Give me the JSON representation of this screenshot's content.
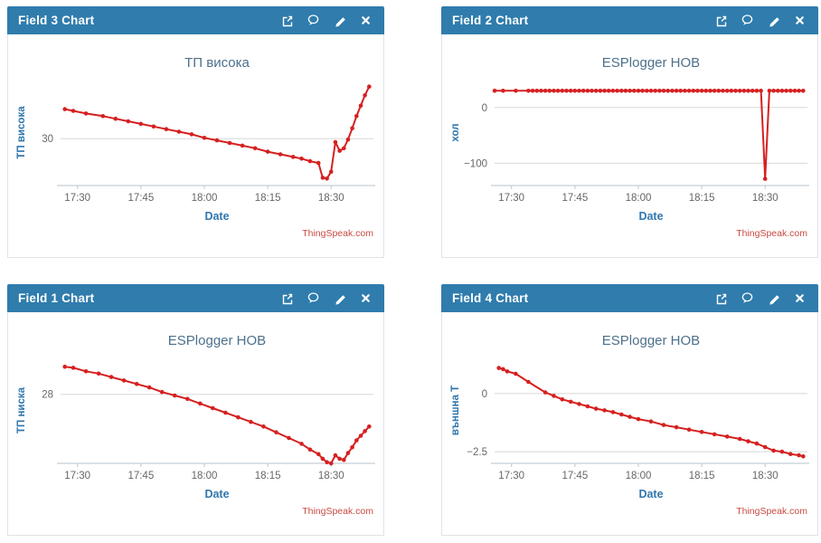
{
  "colors": {
    "page_bg": "#ffffff",
    "header_bg": "#2f7cad",
    "header_text": "#ffffff",
    "panel_border": "#dfe4e8",
    "title_text": "#4d708b",
    "axis_label": "#3077ad",
    "tick_text": "#666666",
    "grid_line": "#d8d8d8",
    "axis_line": "#c3cfd8",
    "series_red": "#d62020",
    "watermark": "#ca4a42"
  },
  "icons": [
    {
      "name": "external-link-icon"
    },
    {
      "name": "comment-icon"
    },
    {
      "name": "edit-pencil-icon"
    },
    {
      "name": "close-icon"
    }
  ],
  "panels": [
    {
      "header": "Field 3 Chart"
    },
    {
      "header": "Field 2 Chart"
    },
    {
      "header": "Field 1 Chart"
    },
    {
      "header": "Field 4 Chart"
    }
  ],
  "chart_data": [
    {
      "type": "line",
      "title": "ТП висока",
      "xlabel": "Date",
      "ylabel": "ТП висока",
      "watermark": "ThingSpeak.com",
      "x_ticks": [
        "17:30",
        "17:45",
        "18:00",
        "18:15",
        "18:30"
      ],
      "x_tick_minutes": [
        1050,
        1065,
        1080,
        1095,
        1110
      ],
      "xlim_minutes": [
        1046,
        1120
      ],
      "ylim": [
        27.3,
        33.4
      ],
      "y_gridlines": [
        {
          "value": 30,
          "label": "30"
        }
      ],
      "legend": "off",
      "grid": "horizontal-only",
      "series": [
        {
          "name": "field3",
          "color": "#d62020",
          "points": [
            [
              1047,
              31.7
            ],
            [
              1049,
              31.6
            ],
            [
              1052,
              31.45
            ],
            [
              1056,
              31.3
            ],
            [
              1059,
              31.15
            ],
            [
              1062,
              31.0
            ],
            [
              1065,
              30.85
            ],
            [
              1068,
              30.7
            ],
            [
              1071,
              30.55
            ],
            [
              1074,
              30.4
            ],
            [
              1077,
              30.25
            ],
            [
              1080,
              30.05
            ],
            [
              1083,
              29.9
            ],
            [
              1086,
              29.75
            ],
            [
              1089,
              29.6
            ],
            [
              1092,
              29.45
            ],
            [
              1095,
              29.25
            ],
            [
              1098,
              29.1
            ],
            [
              1101,
              28.95
            ],
            [
              1103,
              28.85
            ],
            [
              1105,
              28.7
            ],
            [
              1107,
              28.6
            ],
            [
              1108,
              27.75
            ],
            [
              1109,
              27.7
            ],
            [
              1110,
              28.1
            ],
            [
              1111,
              29.8
            ],
            [
              1112,
              29.3
            ],
            [
              1113,
              29.45
            ],
            [
              1114,
              29.95
            ],
            [
              1115,
              30.6
            ],
            [
              1116,
              31.3
            ],
            [
              1117,
              31.9
            ],
            [
              1118,
              32.5
            ],
            [
              1119,
              33.0
            ]
          ]
        }
      ]
    },
    {
      "type": "line",
      "title": "ESPlogger НОВ",
      "xlabel": "Date",
      "ylabel": "хол",
      "watermark": "ThingSpeak.com",
      "x_ticks": [
        "17:30",
        "17:45",
        "18:00",
        "18:15",
        "18:30"
      ],
      "x_tick_minutes": [
        1050,
        1065,
        1080,
        1095,
        1110
      ],
      "xlim_minutes": [
        1046,
        1120
      ],
      "ylim": [
        -140,
        50
      ],
      "y_gridlines": [
        {
          "value": 0,
          "label": "0"
        },
        {
          "value": -100,
          "label": "−100"
        }
      ],
      "legend": "off",
      "grid": "horizontal-only",
      "series": [
        {
          "name": "field2",
          "color": "#d62020",
          "points": [
            [
              1046,
              30
            ],
            [
              1048,
              30
            ],
            [
              1051,
              30
            ],
            [
              1054,
              30
            ],
            [
              1055,
              30
            ],
            [
              1056,
              30
            ],
            [
              1057,
              30
            ],
            [
              1058,
              30
            ],
            [
              1059,
              30
            ],
            [
              1060,
              30
            ],
            [
              1061,
              30
            ],
            [
              1062,
              30
            ],
            [
              1063,
              30
            ],
            [
              1064,
              30
            ],
            [
              1065,
              30
            ],
            [
              1066,
              30
            ],
            [
              1067,
              30
            ],
            [
              1068,
              30
            ],
            [
              1069,
              30
            ],
            [
              1070,
              30
            ],
            [
              1071,
              30
            ],
            [
              1072,
              30
            ],
            [
              1073,
              30
            ],
            [
              1074,
              30
            ],
            [
              1075,
              30
            ],
            [
              1076,
              30
            ],
            [
              1077,
              30
            ],
            [
              1078,
              30
            ],
            [
              1079,
              30
            ],
            [
              1080,
              30
            ],
            [
              1081,
              30
            ],
            [
              1082,
              30
            ],
            [
              1083,
              30
            ],
            [
              1084,
              30
            ],
            [
              1085,
              30
            ],
            [
              1086,
              30
            ],
            [
              1087,
              30
            ],
            [
              1088,
              30
            ],
            [
              1089,
              30
            ],
            [
              1090,
              30
            ],
            [
              1091,
              30
            ],
            [
              1092,
              30
            ],
            [
              1093,
              30
            ],
            [
              1094,
              30
            ],
            [
              1095,
              30
            ],
            [
              1096,
              30
            ],
            [
              1097,
              30
            ],
            [
              1098,
              30
            ],
            [
              1099,
              30
            ],
            [
              1100,
              30
            ],
            [
              1101,
              30
            ],
            [
              1102,
              30
            ],
            [
              1103,
              30
            ],
            [
              1104,
              30
            ],
            [
              1105,
              30
            ],
            [
              1106,
              30
            ],
            [
              1107,
              30
            ],
            [
              1108,
              30
            ],
            [
              1109,
              30
            ],
            [
              1110,
              -128
            ],
            [
              1111,
              30
            ],
            [
              1112,
              30
            ],
            [
              1113,
              30
            ],
            [
              1114,
              30
            ],
            [
              1115,
              30
            ],
            [
              1116,
              30
            ],
            [
              1117,
              30
            ],
            [
              1118,
              30
            ],
            [
              1119,
              30
            ]
          ]
        }
      ]
    },
    {
      "type": "line",
      "title": "ESPlogger НОВ",
      "xlabel": "Date",
      "ylabel": "ТП ниска",
      "watermark": "ThingSpeak.com",
      "x_ticks": [
        "17:30",
        "17:45",
        "18:00",
        "18:15",
        "18:30"
      ],
      "x_tick_minutes": [
        1050,
        1065,
        1080,
        1095,
        1110
      ],
      "xlim_minutes": [
        1046,
        1120
      ],
      "ylim": [
        25.0,
        29.6
      ],
      "y_gridlines": [
        {
          "value": 28,
          "label": "28"
        }
      ],
      "legend": "off",
      "grid": "horizontal-only",
      "series": [
        {
          "name": "field1",
          "color": "#d62020",
          "points": [
            [
              1047,
              29.2
            ],
            [
              1049,
              29.15
            ],
            [
              1052,
              29.0
            ],
            [
              1055,
              28.9
            ],
            [
              1058,
              28.75
            ],
            [
              1061,
              28.6
            ],
            [
              1064,
              28.45
            ],
            [
              1067,
              28.3
            ],
            [
              1070,
              28.1
            ],
            [
              1073,
              27.95
            ],
            [
              1076,
              27.8
            ],
            [
              1079,
              27.6
            ],
            [
              1082,
              27.4
            ],
            [
              1085,
              27.2
            ],
            [
              1088,
              27.0
            ],
            [
              1091,
              26.8
            ],
            [
              1094,
              26.6
            ],
            [
              1097,
              26.35
            ],
            [
              1100,
              26.1
            ],
            [
              1103,
              25.85
            ],
            [
              1105,
              25.6
            ],
            [
              1107,
              25.4
            ],
            [
              1108,
              25.2
            ],
            [
              1109,
              25.05
            ],
            [
              1110,
              25.0
            ],
            [
              1111,
              25.35
            ],
            [
              1112,
              25.2
            ],
            [
              1113,
              25.15
            ],
            [
              1114,
              25.45
            ],
            [
              1115,
              25.7
            ],
            [
              1116,
              26.0
            ],
            [
              1117,
              26.2
            ],
            [
              1118,
              26.4
            ],
            [
              1119,
              26.6
            ]
          ]
        }
      ]
    },
    {
      "type": "line",
      "title": "ESPlogger НОВ",
      "xlabel": "Date",
      "ylabel": "външна Т",
      "watermark": "ThingSpeak.com",
      "x_ticks": [
        "17:30",
        "17:45",
        "18:00",
        "18:15",
        "18:30"
      ],
      "x_tick_minutes": [
        1050,
        1065,
        1080,
        1095,
        1110
      ],
      "xlim_minutes": [
        1046,
        1120
      ],
      "ylim": [
        -3.0,
        1.55
      ],
      "y_gridlines": [
        {
          "value": 0,
          "label": "0"
        },
        {
          "value": -2.5,
          "label": "−2.5"
        }
      ],
      "legend": "off",
      "grid": "horizontal-only",
      "series": [
        {
          "name": "field4",
          "color": "#d62020",
          "points": [
            [
              1047,
              1.1
            ],
            [
              1048,
              1.05
            ],
            [
              1049,
              0.95
            ],
            [
              1051,
              0.85
            ],
            [
              1054,
              0.5
            ],
            [
              1058,
              0.05
            ],
            [
              1060,
              -0.1
            ],
            [
              1062,
              -0.25
            ],
            [
              1064,
              -0.35
            ],
            [
              1066,
              -0.45
            ],
            [
              1068,
              -0.55
            ],
            [
              1070,
              -0.65
            ],
            [
              1072,
              -0.72
            ],
            [
              1074,
              -0.8
            ],
            [
              1076,
              -0.9
            ],
            [
              1078,
              -1.0
            ],
            [
              1080,
              -1.1
            ],
            [
              1083,
              -1.2
            ],
            [
              1086,
              -1.35
            ],
            [
              1089,
              -1.45
            ],
            [
              1092,
              -1.55
            ],
            [
              1095,
              -1.65
            ],
            [
              1098,
              -1.75
            ],
            [
              1101,
              -1.85
            ],
            [
              1104,
              -1.95
            ],
            [
              1106,
              -2.05
            ],
            [
              1108,
              -2.15
            ],
            [
              1110,
              -2.3
            ],
            [
              1112,
              -2.45
            ],
            [
              1114,
              -2.5
            ],
            [
              1116,
              -2.6
            ],
            [
              1118,
              -2.65
            ],
            [
              1119,
              -2.7
            ]
          ]
        }
      ]
    }
  ]
}
